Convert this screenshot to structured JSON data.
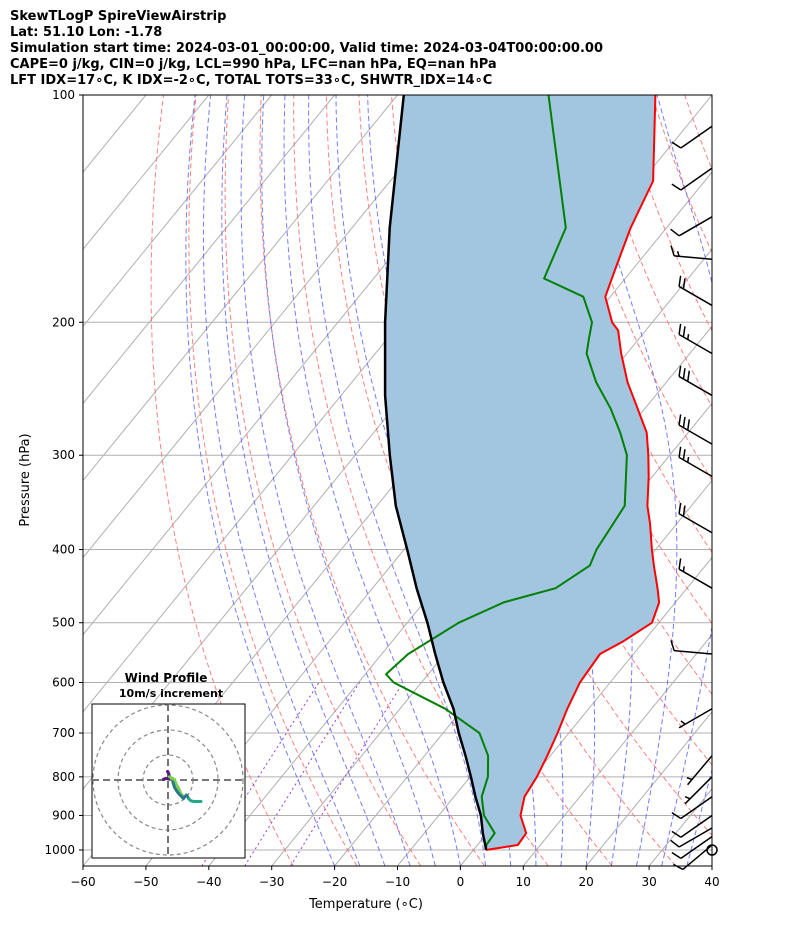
{
  "header": {
    "title": "SkewTLogP SpireViewAirstrip",
    "location": "Lat: 51.10   Lon: -1.78",
    "times": "Simulation start time: 2024-03-01_00:00:00, Valid time: 2024-03-04T00:00:00.00",
    "parcel": "CAPE=0 j/kg, CIN=0 j/kg, LCL=990 hPa, LFC=nan hPa, EQ=nan hPa",
    "indices": "LFT IDX=17∘C, K IDX=-2∘C, TOTAL TOTS=33∘C, SHWTR_IDX=14∘C"
  },
  "chart_data": {
    "type": "line",
    "subtype": "skew-t log-p",
    "xlabel": "Temperature (∘C)",
    "ylabel": "Pressure (hPa)",
    "xlim": [
      -60,
      40
    ],
    "ylim": [
      1050,
      100
    ],
    "x_ticks": [
      -60,
      -50,
      -40,
      -30,
      -20,
      -10,
      0,
      10,
      20,
      30,
      40
    ],
    "x_tick_labels": [
      "−60",
      "−50",
      "−40",
      "−30",
      "−20",
      "−10",
      "0",
      "10",
      "20",
      "30",
      "40"
    ],
    "y_ticks": [
      1000,
      900,
      800,
      700,
      600,
      500,
      400,
      300,
      200,
      100
    ],
    "y_tick_labels": [
      "1000",
      "900",
      "800",
      "700",
      "600",
      "500",
      "400",
      "300",
      "200",
      "100"
    ],
    "colors": {
      "temperature": "#ff0000",
      "dewpoint": "#008000",
      "parcel": "#000000",
      "fill": "#a3c6e0",
      "dry_adiabats": "#ff6a6a",
      "moist_adiabats": "#4f5cff",
      "mixing_ratio": "#9b3cd8",
      "isotherms": "#b0b0b0"
    },
    "series": [
      {
        "name": "Temperature",
        "pressure": [
          1000,
          985,
          950,
          900,
          850,
          800,
          750,
          700,
          650,
          600,
          550,
          530,
          500,
          470,
          450,
          420,
          400,
          370,
          350,
          320,
          300,
          280,
          260,
          240,
          220,
          205,
          200,
          185,
          170,
          150,
          130,
          100
        ],
        "values": [
          2,
          6.4,
          6.2,
          3,
          1.2,
          0.6,
          -0.5,
          -1.8,
          -3.4,
          -4.8,
          -5.3,
          -3.3,
          -1.1,
          -2.6,
          -4.7,
          -8.2,
          -10.6,
          -14.2,
          -17,
          -20.6,
          -23.4,
          -26.6,
          -31.2,
          -36.2,
          -40.9,
          -44.4,
          -46.4,
          -50.8,
          -52.8,
          -55.7,
          -58.2,
          -69
        ]
      },
      {
        "name": "Dewpoint",
        "pressure": [
          1000,
          985,
          950,
          900,
          850,
          800,
          750,
          700,
          650,
          600,
          585,
          550,
          500,
          470,
          450,
          420,
          400,
          370,
          350,
          300,
          280,
          260,
          240,
          220,
          210,
          200,
          185,
          175,
          150,
          100
        ],
        "values": [
          2,
          1.4,
          1.2,
          -2.8,
          -5.6,
          -7.2,
          -9.9,
          -14.2,
          -22.8,
          -34.4,
          -36.7,
          -35.8,
          -31.8,
          -27.3,
          -20.9,
          -18.4,
          -19.4,
          -20.1,
          -20.6,
          -26.8,
          -30.8,
          -35.5,
          -41.2,
          -46.4,
          -48,
          -49.6,
          -54.3,
          -62.9,
          -66,
          -86
        ]
      },
      {
        "name": "Parcel",
        "pressure": [
          1000,
          990,
          950,
          900,
          850,
          800,
          750,
          700,
          650,
          600,
          550,
          500,
          450,
          400,
          350,
          300,
          250,
          200,
          150,
          100
        ],
        "values": [
          2,
          1.5,
          -0.7,
          -3.3,
          -6.6,
          -9.9,
          -13.5,
          -17.5,
          -21.5,
          -26.5,
          -31.5,
          -36.8,
          -43,
          -49.5,
          -57,
          -64.5,
          -73,
          -82.5,
          -94,
          -109
        ]
      }
    ],
    "wind_barbs": [
      {
        "pressure": 1000,
        "speed_kt": 0,
        "direction_deg": 0
      },
      {
        "pressure": 985,
        "speed_kt": 10,
        "direction_deg": 230
      },
      {
        "pressure": 960,
        "speed_kt": 10,
        "direction_deg": 235
      },
      {
        "pressure": 935,
        "speed_kt": 10,
        "direction_deg": 240
      },
      {
        "pressure": 900,
        "speed_kt": 10,
        "direction_deg": 235
      },
      {
        "pressure": 850,
        "speed_kt": 10,
        "direction_deg": 235
      },
      {
        "pressure": 800,
        "speed_kt": 5,
        "direction_deg": 225
      },
      {
        "pressure": 750,
        "speed_kt": 5,
        "direction_deg": 220
      },
      {
        "pressure": 650,
        "speed_kt": 5,
        "direction_deg": 240
      },
      {
        "pressure": 550,
        "speed_kt": 10,
        "direction_deg": 275
      },
      {
        "pressure": 450,
        "speed_kt": 15,
        "direction_deg": 300
      },
      {
        "pressure": 380,
        "speed_kt": 20,
        "direction_deg": 300
      },
      {
        "pressure": 320,
        "speed_kt": 25,
        "direction_deg": 300
      },
      {
        "pressure": 290,
        "speed_kt": 30,
        "direction_deg": 300
      },
      {
        "pressure": 250,
        "speed_kt": 30,
        "direction_deg": 300
      },
      {
        "pressure": 220,
        "speed_kt": 25,
        "direction_deg": 300
      },
      {
        "pressure": 190,
        "speed_kt": 20,
        "direction_deg": 300
      },
      {
        "pressure": 165,
        "speed_kt": 15,
        "direction_deg": 275
      },
      {
        "pressure": 145,
        "speed_kt": 10,
        "direction_deg": 240
      },
      {
        "pressure": 125,
        "speed_kt": 10,
        "direction_deg": 235
      },
      {
        "pressure": 110,
        "speed_kt": 10,
        "direction_deg": 235
      }
    ],
    "hodograph": {
      "title": "Wind Profile",
      "subtitle": "10m/s increment",
      "ring_spacing_ms": 10,
      "ring_count": 3,
      "segments": [
        {
          "color": "#5a1a7a",
          "points": [
            [
              -0.2,
              3.4
            ],
            [
              0.3,
              2.6
            ],
            [
              0.6,
              1.3
            ],
            [
              0.2,
              0.4
            ],
            [
              -0.8,
              0.7
            ],
            [
              -1.8,
              0.3
            ]
          ]
        },
        {
          "color": "#7ad151",
          "points": [
            [
              0.6,
              1.3
            ],
            [
              2.6,
              0.2
            ],
            [
              3.4,
              -2.0
            ],
            [
              4.2,
              -3.1
            ],
            [
              5.2,
              -5.6
            ],
            [
              6.1,
              -6.4
            ],
            [
              6.1,
              -7.4
            ]
          ]
        },
        {
          "color": "#2a788e",
          "points": [
            [
              1.9,
              -0.8
            ],
            [
              2.6,
              -2.9
            ],
            [
              3.7,
              -4.7
            ],
            [
              4.6,
              -5.8
            ],
            [
              5.4,
              -6.6
            ],
            [
              6.1,
              -7.4
            ],
            [
              7.4,
              -6.0
            ],
            [
              8.4,
              -7.6
            ]
          ]
        },
        {
          "color": "#22a884",
          "points": [
            [
              8.4,
              -7.6
            ],
            [
              9.1,
              -8.3
            ],
            [
              10.4,
              -8.6
            ],
            [
              11.8,
              -8.6
            ],
            [
              13.2,
              -8.6
            ]
          ]
        }
      ]
    }
  }
}
